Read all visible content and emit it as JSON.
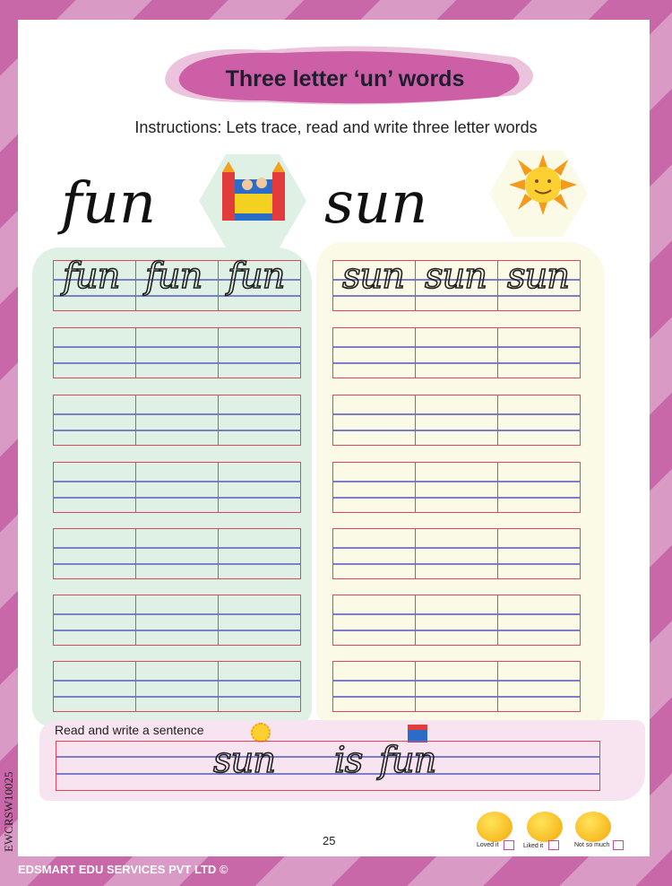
{
  "title": "Three letter ‘un’ words",
  "instructions": "Instructions: Lets trace, read and write three letter words",
  "words": [
    {
      "word": "fun",
      "picture": "bouncy-castle",
      "trace": [
        "fun",
        "fun",
        "fun"
      ]
    },
    {
      "word": "sun",
      "picture": "sun",
      "trace": [
        "sun",
        "sun",
        "sun"
      ]
    }
  ],
  "sentence": {
    "label": "Read and write a sentence",
    "text": [
      "sun",
      "is",
      "fun"
    ]
  },
  "page_number": "25",
  "feedback": [
    {
      "label": "Loved it",
      "icon": "laughing-face-icon"
    },
    {
      "label": "Liked it",
      "icon": "smiley-face-icon"
    },
    {
      "label": "Not so much",
      "icon": "rolling-eyes-face-icon"
    }
  ],
  "footer": "EDSMART EDU SERVICES PVT LTD ©",
  "code": "EWCRSW10025",
  "colors": {
    "accent": "#c868a8",
    "grid_red": "#e0475a",
    "grid_blue": "#7c7fc8",
    "left_panel": "#dff0e4",
    "right_panel": "#fbfae6"
  }
}
